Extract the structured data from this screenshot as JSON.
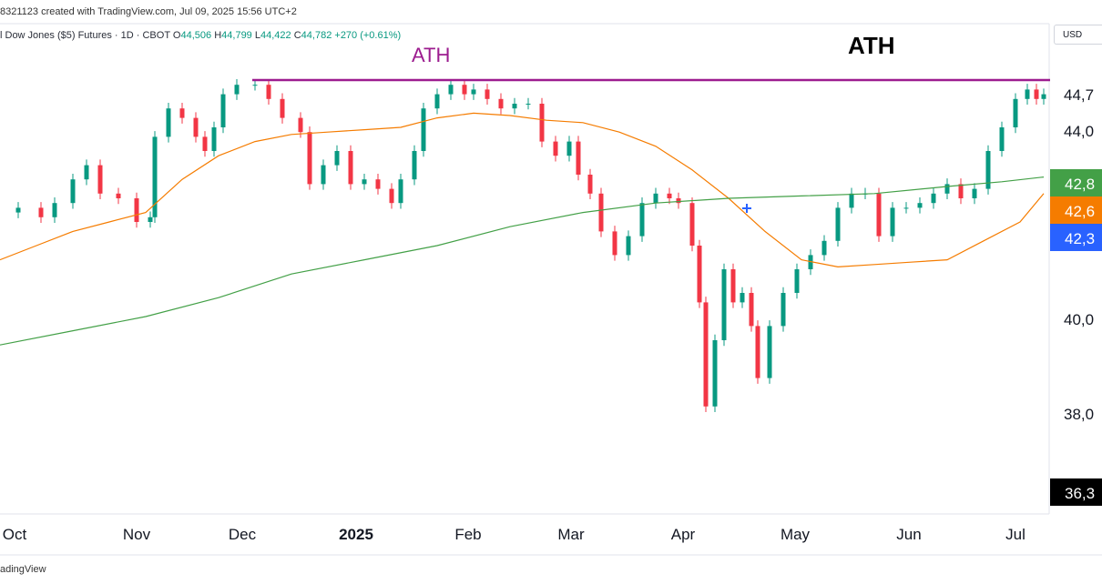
{
  "header": {
    "created": "8321123 created with TradingView.com, Jul 09, 2025 15:56 UTC+2",
    "symbol_name": "l Dow Jones ($5) Futures · 1D · CBOT",
    "open_label": "O",
    "open": "44,506",
    "high_label": "H",
    "high": "44,799",
    "low_label": "L",
    "low": "44,422",
    "close_label": "C",
    "close": "44,782",
    "change": "+270 (+0.61%)"
  },
  "currency": "USD",
  "footer": "adingView",
  "chart_data": {
    "type": "candlestick",
    "annotations": [
      {
        "text": "ATH",
        "color": "#9c1c8f"
      },
      {
        "text": "ATH",
        "color": "#000000"
      }
    ],
    "ath_line": {
      "value": 45000,
      "color": "#9c1c8f"
    },
    "x_ticks": [
      "Oct",
      "Nov",
      "Dec",
      "2025",
      "Feb",
      "Mar",
      "Apr",
      "May",
      "Jun",
      "Jul"
    ],
    "y_ticks": [
      "44,7",
      "44,0",
      "40,0",
      "38,0"
    ],
    "price_labels": [
      {
        "text": "42,8",
        "color": "#43a047"
      },
      {
        "text": "42,6",
        "color": "#f57c00"
      },
      {
        "text": "42,3",
        "color": "#2962ff"
      },
      {
        "text": "36,3",
        "color": "#000000"
      }
    ],
    "series": [
      {
        "name": "",
        "color": "#43a047"
      },
      {
        "name": "",
        "color": "#f57c00"
      }
    ],
    "up_color": "#089981",
    "down_color": "#f23645"
  }
}
